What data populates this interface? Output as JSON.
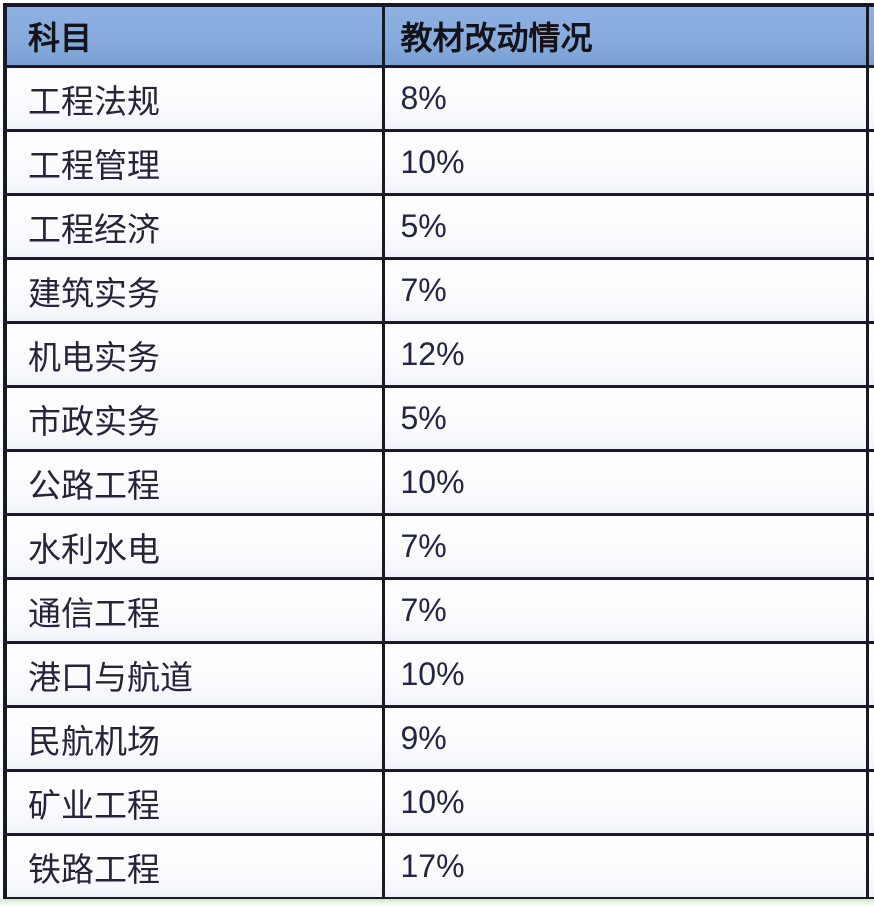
{
  "table": {
    "columns": [
      {
        "label": "科目"
      },
      {
        "label": "教材改动情况"
      }
    ],
    "rows": [
      {
        "subject": "工程法规",
        "change": "8%"
      },
      {
        "subject": "工程管理",
        "change": "10%"
      },
      {
        "subject": "工程经济",
        "change": "5%"
      },
      {
        "subject": "建筑实务",
        "change": "7%"
      },
      {
        "subject": "机电实务",
        "change": "12%"
      },
      {
        "subject": "市政实务",
        "change": "5%"
      },
      {
        "subject": "公路工程",
        "change": "10%"
      },
      {
        "subject": "水利水电",
        "change": "7%"
      },
      {
        "subject": "通信工程",
        "change": "7%"
      },
      {
        "subject": "港口与航道",
        "change": "10%"
      },
      {
        "subject": "民航机场",
        "change": "9%"
      },
      {
        "subject": "矿业工程",
        "change": "10%"
      },
      {
        "subject": "铁路工程",
        "change": "17%"
      }
    ],
    "colors": {
      "header_bg": "#87abdd",
      "border": "#1a1a26",
      "row_bg_top": "#fdfeff",
      "row_bg_bottom": "#f0f4fa",
      "strip_green": "#cde7c6",
      "body_text": "#26243a",
      "header_text": "#141319"
    }
  }
}
